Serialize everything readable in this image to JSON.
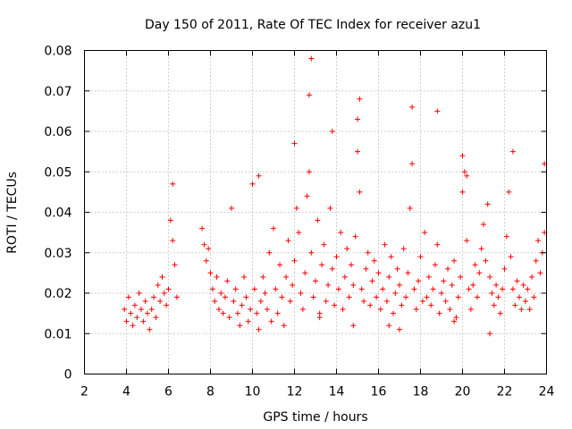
{
  "chart_data": {
    "type": "scatter",
    "title": "Day 150 of 2011, Rate Of TEC Index for receiver azu1",
    "xlabel": "GPS time / hours",
    "ylabel": "ROTI / TECUs",
    "xlim": [
      2,
      24
    ],
    "ylim": [
      0,
      0.08
    ],
    "x_ticks": [
      "2",
      "4",
      "6",
      "8",
      "10",
      "12",
      "14",
      "16",
      "18",
      "20",
      "22",
      "24"
    ],
    "y_ticks": [
      "0",
      "0.01",
      "0.02",
      "0.03",
      "0.04",
      "0.05",
      "0.06",
      "0.07",
      "0.08"
    ],
    "grid": true,
    "marker": "plus",
    "color": "#ff0000",
    "series": [
      {
        "x": [
          3.9,
          4.0,
          4.1,
          4.2,
          4.3,
          4.4,
          4.5,
          4.6,
          4.7,
          4.8,
          4.9,
          5.0,
          5.1,
          5.2,
          5.3,
          5.4,
          5.5,
          5.6,
          5.7,
          5.8,
          5.9,
          6.0,
          6.1,
          6.2,
          6.3,
          6.4,
          7.6,
          7.7,
          7.8,
          7.9,
          8.0,
          8.1,
          8.2,
          8.3,
          8.4,
          8.5,
          8.6,
          8.7,
          8.8,
          8.9,
          9.0,
          9.1,
          9.2,
          9.3,
          9.4,
          9.5,
          9.6,
          9.7,
          9.8,
          9.9,
          10.0,
          10.1,
          10.2,
          10.3,
          10.4,
          10.5,
          10.6,
          10.7,
          10.8,
          10.9,
          11.0,
          11.1,
          11.2,
          11.3,
          11.4,
          11.5,
          11.6,
          11.7,
          11.8,
          11.9,
          12.0,
          12.1,
          12.2,
          12.3,
          12.4,
          12.5,
          12.6,
          12.7,
          12.8,
          12.9,
          13.0,
          13.1,
          13.2,
          13.3,
          13.4,
          13.5,
          13.6,
          13.7,
          13.8,
          13.9,
          14.0,
          14.1,
          14.2,
          14.3,
          14.4,
          14.5,
          14.6,
          14.7,
          14.8,
          14.9,
          15.0,
          15.1,
          15.2,
          15.3,
          15.4,
          15.5,
          15.6,
          15.7,
          15.8,
          15.9,
          16.0,
          16.1,
          16.2,
          16.3,
          16.4,
          16.5,
          16.6,
          16.7,
          16.8,
          16.9,
          17.0,
          17.1,
          17.2,
          17.3,
          17.4,
          17.5,
          17.6,
          17.7,
          17.8,
          17.9,
          18.0,
          18.1,
          18.2,
          18.3,
          18.4,
          18.5,
          18.6,
          18.7,
          18.8,
          18.9,
          19.0,
          19.1,
          19.2,
          19.3,
          19.4,
          19.5,
          19.6,
          19.7,
          19.8,
          19.9,
          20.0,
          20.1,
          20.2,
          20.3,
          20.4,
          20.5,
          20.6,
          20.7,
          20.8,
          20.9,
          21.0,
          21.1,
          21.2,
          21.3,
          21.4,
          21.5,
          21.6,
          21.7,
          21.8,
          21.9,
          22.0,
          22.1,
          22.2,
          22.3,
          22.4,
          22.5,
          22.6,
          22.7,
          22.8,
          22.9,
          23.0,
          23.1,
          23.2,
          23.3,
          23.4,
          23.5,
          23.6,
          23.7,
          23.8,
          23.9,
          12.8,
          12.7,
          15.1,
          15.0,
          17.6,
          18.8,
          12.0,
          13.8,
          20.0,
          20.2,
          6.2,
          10.3,
          22.4,
          23.9,
          13.2,
          14.8,
          17.0,
          19.6,
          21.3,
          16.5
        ],
        "y": [
          0.016,
          0.013,
          0.019,
          0.015,
          0.012,
          0.017,
          0.014,
          0.02,
          0.016,
          0.013,
          0.018,
          0.015,
          0.011,
          0.016,
          0.019,
          0.014,
          0.022,
          0.018,
          0.024,
          0.02,
          0.017,
          0.021,
          0.038,
          0.033,
          0.027,
          0.019,
          0.036,
          0.032,
          0.028,
          0.031,
          0.025,
          0.021,
          0.018,
          0.024,
          0.016,
          0.02,
          0.015,
          0.019,
          0.023,
          0.014,
          0.041,
          0.018,
          0.021,
          0.015,
          0.012,
          0.017,
          0.024,
          0.019,
          0.013,
          0.016,
          0.047,
          0.021,
          0.015,
          0.011,
          0.018,
          0.024,
          0.02,
          0.016,
          0.03,
          0.013,
          0.036,
          0.021,
          0.015,
          0.027,
          0.019,
          0.012,
          0.024,
          0.033,
          0.018,
          0.022,
          0.028,
          0.041,
          0.035,
          0.02,
          0.016,
          0.025,
          0.044,
          0.05,
          0.03,
          0.019,
          0.023,
          0.038,
          0.015,
          0.027,
          0.032,
          0.018,
          0.022,
          0.041,
          0.026,
          0.017,
          0.029,
          0.021,
          0.035,
          0.016,
          0.024,
          0.031,
          0.019,
          0.027,
          0.022,
          0.034,
          0.055,
          0.045,
          0.021,
          0.018,
          0.026,
          0.03,
          0.017,
          0.023,
          0.028,
          0.019,
          0.025,
          0.016,
          0.021,
          0.032,
          0.018,
          0.024,
          0.029,
          0.015,
          0.02,
          0.026,
          0.022,
          0.017,
          0.031,
          0.019,
          0.025,
          0.041,
          0.052,
          0.021,
          0.016,
          0.023,
          0.029,
          0.018,
          0.035,
          0.019,
          0.024,
          0.017,
          0.021,
          0.027,
          0.032,
          0.015,
          0.02,
          0.023,
          0.018,
          0.026,
          0.016,
          0.022,
          0.028,
          0.014,
          0.019,
          0.024,
          0.045,
          0.05,
          0.033,
          0.021,
          0.016,
          0.022,
          0.027,
          0.019,
          0.025,
          0.031,
          0.037,
          0.028,
          0.042,
          0.024,
          0.02,
          0.017,
          0.022,
          0.019,
          0.015,
          0.021,
          0.026,
          0.034,
          0.045,
          0.029,
          0.021,
          0.017,
          0.023,
          0.019,
          0.016,
          0.022,
          0.018,
          0.021,
          0.016,
          0.024,
          0.019,
          0.028,
          0.033,
          0.025,
          0.03,
          0.035,
          0.078,
          0.069,
          0.068,
          0.063,
          0.066,
          0.065,
          0.057,
          0.06,
          0.054,
          0.049,
          0.047,
          0.049,
          0.055,
          0.052,
          0.014,
          0.012,
          0.011,
          0.013,
          0.01,
          0.012
        ]
      }
    ]
  }
}
